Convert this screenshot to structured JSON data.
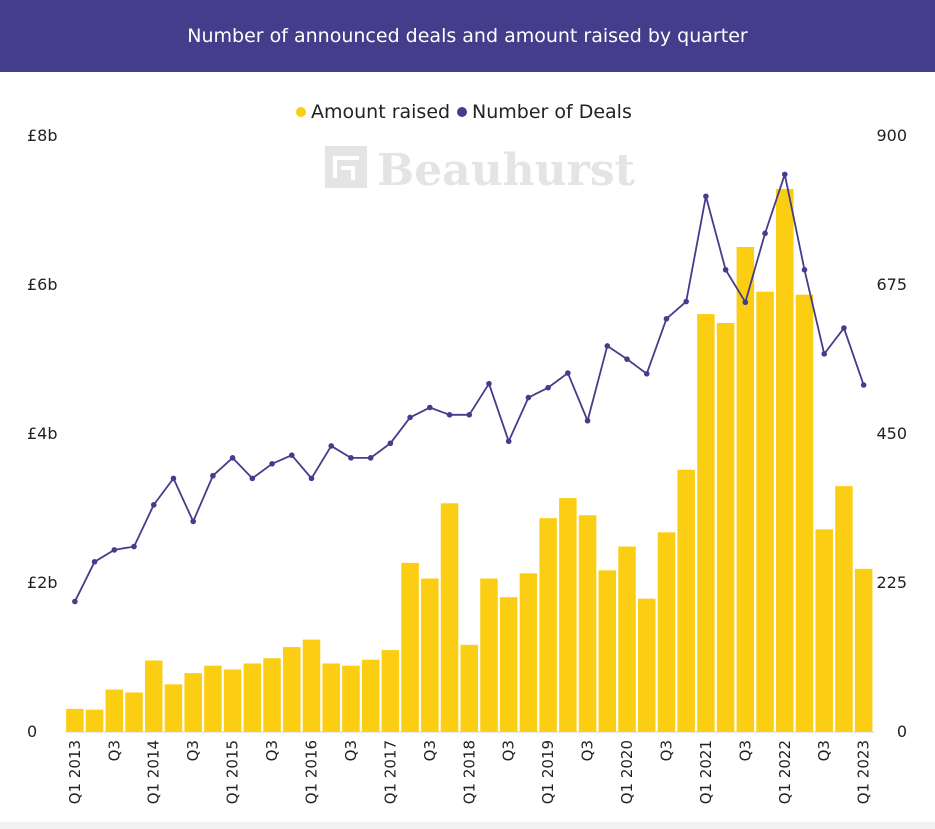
{
  "chart_data": {
    "type": "bar+line",
    "title": "Number of announced deals and amount raised by quarter",
    "watermark": "Beauhurst",
    "legend": {
      "position": "top-center"
    },
    "series": [
      {
        "name": "Amount raised",
        "type": "bar",
        "axis": "left",
        "color": "#fcce13",
        "values": [
          0.31,
          0.3,
          0.57,
          0.53,
          0.96,
          0.64,
          0.79,
          0.89,
          0.84,
          0.92,
          0.99,
          1.14,
          1.24,
          0.92,
          0.89,
          0.97,
          1.1,
          2.27,
          2.06,
          3.07,
          1.17,
          2.06,
          1.81,
          2.13,
          2.87,
          3.14,
          2.91,
          2.17,
          2.49,
          1.79,
          2.68,
          3.52,
          5.61,
          5.49,
          6.51,
          5.91,
          7.29,
          5.87,
          2.72,
          3.3,
          2.19
        ]
      },
      {
        "name": "Number of Deals",
        "type": "line",
        "axis": "right",
        "color": "#433d8b",
        "values": [
          197,
          257,
          275,
          280,
          343,
          383,
          318,
          387,
          414,
          383,
          405,
          418,
          383,
          432,
          414,
          414,
          436,
          475,
          490,
          479,
          479,
          526,
          439,
          505,
          520,
          542,
          470,
          583,
          563,
          541,
          624,
          650,
          809,
          698,
          649,
          753,
          842,
          698,
          571,
          610,
          524
        ]
      }
    ],
    "categories": [
      "Q1 2013",
      "",
      "Q3",
      "",
      "Q1 2014",
      "",
      "Q3",
      "",
      "Q1 2015",
      "",
      "Q3",
      "",
      "Q1 2016",
      "",
      "Q3",
      "",
      "Q1 2017",
      "",
      "Q3",
      "",
      "Q1 2018",
      "",
      "Q3",
      "",
      "Q1 2019",
      "",
      "Q3",
      "",
      "Q1 2020",
      "",
      "Q3",
      "",
      "Q1 2021",
      "",
      "Q3",
      "",
      "Q1 2022",
      "",
      "Q3",
      "",
      "Q1 2023"
    ],
    "y_left": {
      "ticks": [
        "0",
        "£2b",
        "£4b",
        "£6b",
        "£8b"
      ],
      "range": [
        0,
        8
      ],
      "unit": "£b"
    },
    "y_right": {
      "ticks": [
        "0",
        "225",
        "450",
        "675",
        "900"
      ],
      "range": [
        0,
        900
      ]
    },
    "grid": false
  }
}
